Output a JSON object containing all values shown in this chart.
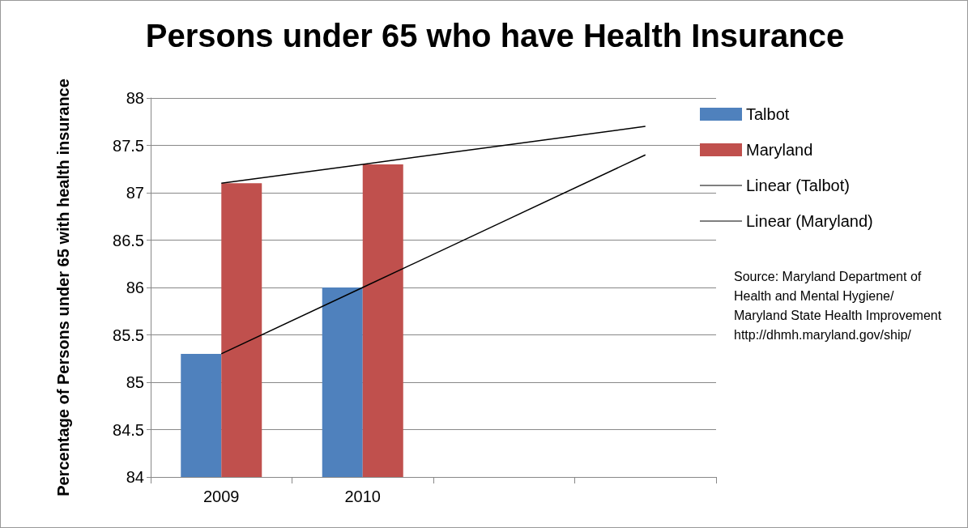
{
  "chart_data": {
    "type": "bar",
    "title": "Persons under 65 who have Health Insurance",
    "ylabel": "Percentage of Persons under 65 with health insurance",
    "categories": [
      "2009",
      "2010",
      null,
      null
    ],
    "series": [
      {
        "name": "Talbot",
        "color": "#4f81bd",
        "values": [
          85.3,
          86.0,
          null,
          null
        ]
      },
      {
        "name": "Maryland",
        "color": "#c0504d",
        "values": [
          87.1,
          87.3,
          null,
          null
        ]
      },
      {
        "name": "Linear (Talbot)",
        "type": "line",
        "color": "#000000",
        "values": [
          85.3,
          86.0,
          86.7,
          87.4
        ]
      },
      {
        "name": "Linear (Maryland)",
        "type": "line",
        "color": "#000000",
        "values": [
          87.1,
          87.3,
          87.5,
          87.7
        ]
      }
    ],
    "ylim": [
      84,
      88
    ],
    "yticks": [
      84,
      84.5,
      85,
      85.5,
      86,
      86.5,
      87,
      87.5,
      88
    ],
    "grid": "y",
    "legend": "right",
    "marker": "none",
    "line_style": "solid",
    "annotations": [
      "Source: Maryland Department of Health and Mental Hygiene/ Maryland State Health Improvement http://dhmh.maryland.gov/ship/"
    ]
  }
}
